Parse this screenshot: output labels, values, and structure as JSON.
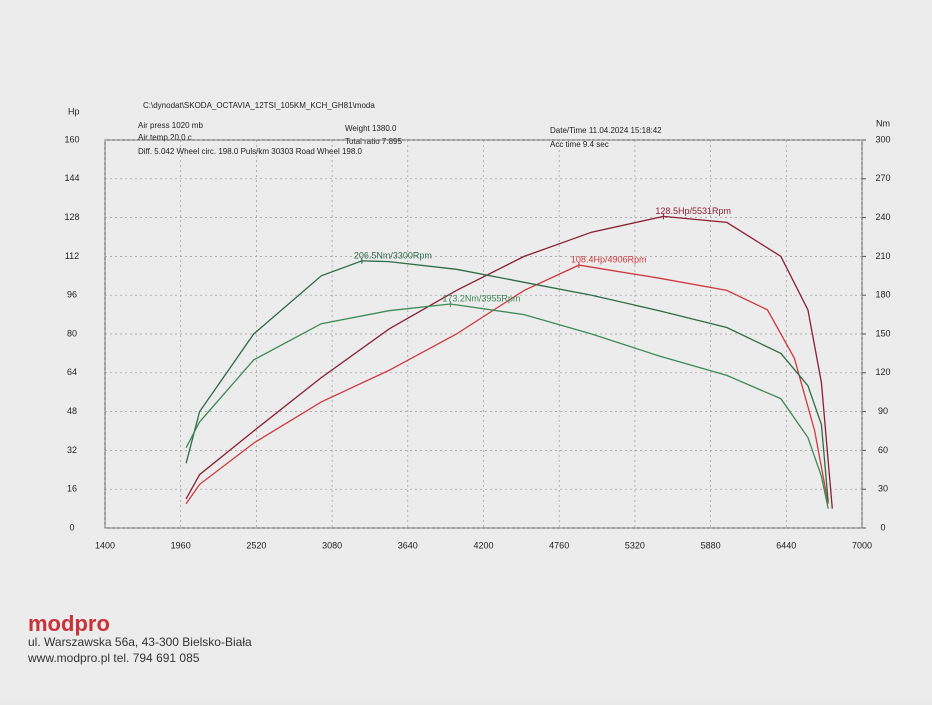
{
  "chart_data": {
    "type": "line",
    "file": "C:\\dynodat\\SKODA_OCTAVIA_12TSI_105KM_KCH_GH81\\moda",
    "info": [
      "Air press  1020 mb",
      "Air temp  20.0 c",
      "Diff.  5.042  Wheel circ. 198.0  Puls/km  30303  Road Wheel 198.0",
      "Weight  1380.0",
      "Total ratio 7.895",
      "Date/Time  11.04.2024 15:18:42",
      "Acc time  9.4 sec"
    ],
    "ylabel": "Hp",
    "y2label": "Nm",
    "xlim": [
      1400,
      7000
    ],
    "xticks": [
      1400,
      1960,
      2520,
      3080,
      3640,
      4200,
      4760,
      5320,
      5880,
      6440,
      7000
    ],
    "ylim": [
      0,
      160
    ],
    "yticks": [
      0,
      16,
      32,
      48,
      64,
      80,
      96,
      112,
      128,
      144,
      160
    ],
    "y2lim": [
      0,
      300
    ],
    "y2ticks": [
      0,
      30,
      60,
      90,
      120,
      150,
      180,
      210,
      240,
      270,
      300
    ],
    "grid": true,
    "series": [
      {
        "label": "128.5Hp/5531Rpm",
        "color": "#8a1f33",
        "x": [
          2000,
          2100,
          2500,
          3000,
          3500,
          4000,
          4500,
          5000,
          5531,
          6000,
          6400,
          6600,
          6700,
          6780
        ],
        "values": [
          12,
          22,
          40,
          62,
          82,
          98,
          112,
          122,
          128.5,
          126,
          112,
          90,
          60,
          8
        ]
      },
      {
        "label": "108.4Hp/4906Rpm",
        "color": "#d0393d",
        "x": [
          2000,
          2100,
          2500,
          3000,
          3500,
          4000,
          4500,
          4906,
          5500,
          6000,
          6300,
          6500,
          6650,
          6750
        ],
        "values": [
          10,
          18,
          35,
          52,
          65,
          80,
          98,
          108.4,
          103,
          98,
          90,
          70,
          40,
          10
        ]
      },
      {
        "label": "206.5Nm/3300Rpm",
        "color": "#2f6b47",
        "axis": "y2",
        "x": [
          2000,
          2100,
          2500,
          3000,
          3300,
          3500,
          4000,
          4500,
          5000,
          5500,
          6000,
          6400,
          6600,
          6700,
          6750
        ],
        "values": [
          50,
          90,
          150,
          195,
          206.5,
          206,
          200,
          190,
          180,
          168,
          155,
          135,
          110,
          80,
          20
        ]
      },
      {
        "label": "173.2Nm/3955Rpm",
        "color": "#3d8a57",
        "axis": "y2",
        "x": [
          2000,
          2100,
          2500,
          3000,
          3500,
          3955,
          4500,
          5000,
          5500,
          6000,
          6400,
          6600,
          6700,
          6750
        ],
        "values": [
          62,
          82,
          130,
          158,
          168,
          173.2,
          165,
          150,
          133,
          118,
          100,
          70,
          40,
          15
        ]
      }
    ]
  },
  "footer": {
    "brand": "modpro",
    "address": "ul. Warszawska 56a, 43-300 Bielsko-Biała",
    "contact": "www.modpro.pl tel. 794 691 085"
  }
}
